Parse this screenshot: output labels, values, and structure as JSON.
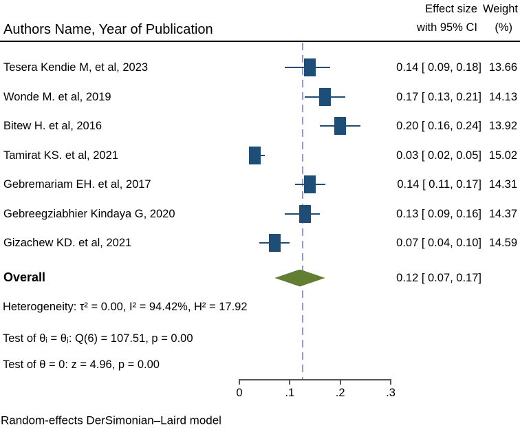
{
  "header": {
    "authors": "Authors Name, Year of Publication",
    "effect_line1": "Effect size",
    "effect_line2": "with 95% CI",
    "weight_line1": "Weight",
    "weight_line2": "(%)"
  },
  "chart_data": {
    "type": "forest",
    "title": "",
    "xlabel": "",
    "axis": {
      "min": 0,
      "max": 0.3,
      "ticks": [
        {
          "value": 0.0,
          "label": "0"
        },
        {
          "value": 0.1,
          "label": ".1"
        },
        {
          "value": 0.2,
          "label": ".2"
        },
        {
          "value": 0.3,
          "label": ".3"
        }
      ]
    },
    "studies": [
      {
        "label": "Tesera Kendie M, et al, 2023",
        "effect": 0.14,
        "ci_low": 0.09,
        "ci_high": 0.18,
        "effect_label": "0.14 [ 0.09, 0.18]",
        "weight": "13.66"
      },
      {
        "label": "Wonde M. et al, 2019",
        "effect": 0.17,
        "ci_low": 0.13,
        "ci_high": 0.21,
        "effect_label": "0.17 [ 0.13, 0.21]",
        "weight": "14.13"
      },
      {
        "label": "Bitew H. et al, 2016",
        "effect": 0.2,
        "ci_low": 0.16,
        "ci_high": 0.24,
        "effect_label": "0.20 [ 0.16, 0.24]",
        "weight": "13.92"
      },
      {
        "label": "Tamirat KS. et al, 2021",
        "effect": 0.03,
        "ci_low": 0.02,
        "ci_high": 0.05,
        "effect_label": "0.03 [ 0.02, 0.05]",
        "weight": "15.02"
      },
      {
        "label": "Gebremariam EH. et al, 2017",
        "effect": 0.14,
        "ci_low": 0.11,
        "ci_high": 0.17,
        "effect_label": "0.14 [ 0.11, 0.17]",
        "weight": "14.31"
      },
      {
        "label": "Gebreegziabhier Kindaya G, 2020",
        "effect": 0.13,
        "ci_low": 0.09,
        "ci_high": 0.16,
        "effect_label": "0.13 [ 0.09, 0.16]",
        "weight": "14.37"
      },
      {
        "label": "Gizachew KD. et al, 2021",
        "effect": 0.07,
        "ci_low": 0.04,
        "ci_high": 0.1,
        "effect_label": "0.07 [ 0.04, 0.10]",
        "weight": "14.59"
      }
    ],
    "overall": {
      "label": "Overall",
      "effect": 0.12,
      "ci_low": 0.07,
      "ci_high": 0.17,
      "effect_label": "0.12 [ 0.07, 0.17]"
    },
    "reference_line_value": 0.125,
    "colors": {
      "marker": "#1e4d78",
      "ci": "#1e4d78",
      "diamond": "#617e33",
      "ref_line": "#8f99d8",
      "axis": "#555555"
    }
  },
  "stats": {
    "heterogeneity": "Heterogeneity: τ² = 0.00, I² = 94.42%, H² = 17.92",
    "test_group": "Test of θᵢ = θⱼ: Q(6) = 107.51, p = 0.00",
    "test_zero": "Test of θ = 0: z = 4.96, p = 0.00"
  },
  "footer": {
    "note": "Random-effects DerSimonian–Laird model"
  }
}
